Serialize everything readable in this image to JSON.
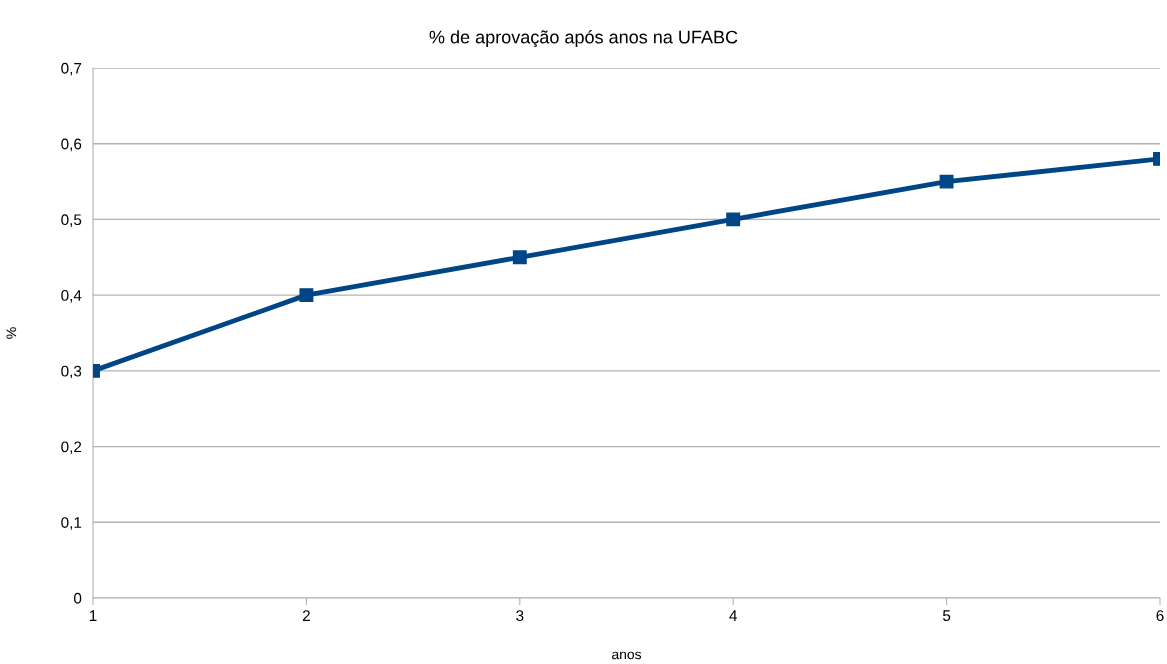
{
  "chart_data": {
    "type": "line",
    "title": "% de aprovação após anos na UFABC",
    "xlabel": "anos",
    "ylabel": "%",
    "x": [
      1,
      2,
      3,
      4,
      5,
      6
    ],
    "series": [
      {
        "color": "#004586",
        "values": [
          0.3,
          0.4,
          0.45,
          0.5,
          0.55,
          0.58
        ]
      }
    ],
    "xlim": [
      1,
      6
    ],
    "xticks": [
      1,
      2,
      3,
      4,
      5,
      6
    ],
    "ylim": [
      0,
      0.7
    ],
    "yticks": [
      {
        "value": 0,
        "label": "0"
      },
      {
        "value": 0.1,
        "label": "0,1"
      },
      {
        "value": 0.2,
        "label": "0,2"
      },
      {
        "value": 0.3,
        "label": "0,3"
      },
      {
        "value": 0.4,
        "label": "0,4"
      },
      {
        "value": 0.5,
        "label": "0,5"
      },
      {
        "value": 0.6,
        "label": "0,6"
      },
      {
        "value": 0.7,
        "label": "0,7"
      }
    ],
    "grid": "y",
    "marker": "square",
    "line_style": "solid"
  }
}
